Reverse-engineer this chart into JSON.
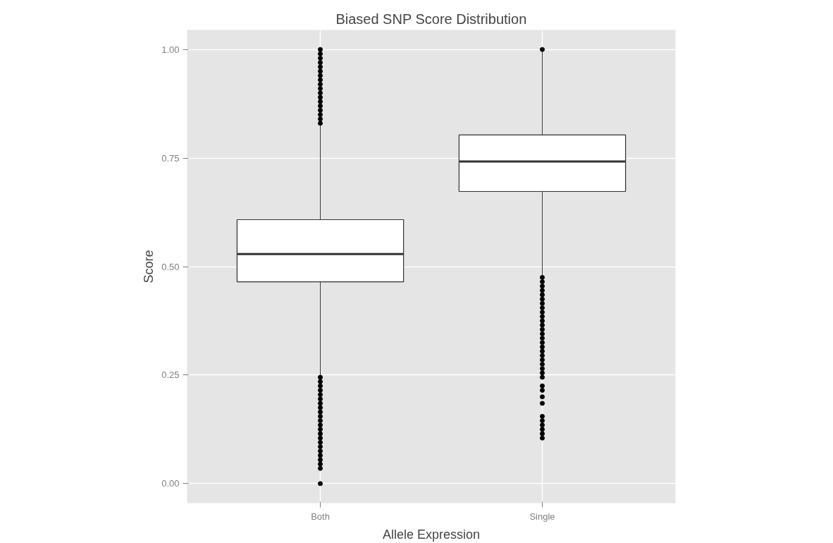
{
  "chart_data": {
    "type": "box",
    "title": "Biased SNP Score Distribution",
    "xlabel": "Allele Expression",
    "ylabel": "Score",
    "categories": [
      "Both",
      "Single"
    ],
    "boxes": [
      {
        "low": 0.25,
        "q1": 0.465,
        "median": 0.529,
        "q3": 0.608,
        "high": 0.825,
        "outliers": [
          0.0,
          0.035,
          0.045,
          0.055,
          0.065,
          0.075,
          0.085,
          0.095,
          0.105,
          0.115,
          0.125,
          0.135,
          0.145,
          0.155,
          0.165,
          0.175,
          0.185,
          0.195,
          0.205,
          0.215,
          0.225,
          0.235,
          0.245,
          0.83,
          0.84,
          0.85,
          0.86,
          0.87,
          0.88,
          0.89,
          0.9,
          0.91,
          0.92,
          0.93,
          0.94,
          0.95,
          0.96,
          0.97,
          0.98,
          0.99,
          1.0
        ]
      },
      {
        "low": 0.48,
        "q1": 0.673,
        "median": 0.742,
        "q3": 0.803,
        "high": 0.995,
        "outliers": [
          0.105,
          0.115,
          0.125,
          0.135,
          0.145,
          0.155,
          0.185,
          0.2,
          0.215,
          0.225,
          0.245,
          0.255,
          0.265,
          0.275,
          0.285,
          0.295,
          0.305,
          0.315,
          0.325,
          0.335,
          0.345,
          0.355,
          0.365,
          0.375,
          0.385,
          0.395,
          0.405,
          0.415,
          0.425,
          0.435,
          0.445,
          0.455,
          0.465,
          0.475,
          1.0
        ]
      }
    ],
    "color": "#ffffff",
    "ylim": [
      -0.045,
      1.045
    ],
    "yticks": [
      {
        "value": 0,
        "label": "0.00"
      },
      {
        "value": 0.25,
        "label": "0.25"
      },
      {
        "value": 0.5,
        "label": "0.50"
      },
      {
        "value": 0.75,
        "label": "0.75"
      },
      {
        "value": 1,
        "label": "1.00"
      }
    ],
    "grid": true
  }
}
